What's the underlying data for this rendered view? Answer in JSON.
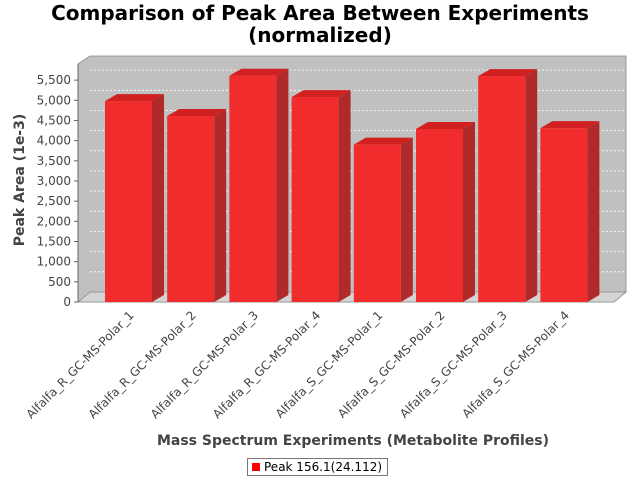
{
  "chart_data": {
    "type": "bar",
    "title": "Comparison of Peak Area Between Experiments (normalized)",
    "xlabel": "Mass Spectrum Experiments (Metabolite Profiles)",
    "ylabel": "Peak Area (1e-3)",
    "categories": [
      "Alfalfa_R_GC-MS-Polar_1",
      "Alfalfa_R_GC-MS-Polar_2",
      "Alfalfa_R_GC-MS-Polar_3",
      "Alfalfa_R_GC-MS-Polar_4",
      "Alfalfa_S_GC-MS-Polar_1",
      "Alfalfa_S_GC-MS-Polar_2",
      "Alfalfa_S_GC-MS-Polar_3",
      "Alfalfa_S_GC-MS-Polar_4"
    ],
    "series": [
      {
        "name": "Peak 156.1(24.112)",
        "values": [
          4980,
          4610,
          5610,
          5080,
          3900,
          4290,
          5600,
          4310
        ]
      }
    ],
    "yticks": [
      0,
      500,
      1000,
      1500,
      2000,
      2500,
      3000,
      3500,
      4000,
      4500,
      5000,
      5500
    ],
    "ytick_labels": [
      "0",
      "500",
      "1,000",
      "1,500",
      "2,000",
      "2,500",
      "3,000",
      "3,500",
      "4,000",
      "4,500",
      "5,000",
      "5,500"
    ],
    "ylim": [
      0,
      5900
    ],
    "grid": true,
    "legend": "bottom",
    "style": "3d",
    "colors": {
      "bar_front": "#f02c2c",
      "bar_top": "#d02020",
      "bar_side": "#b02a2a",
      "plot_back": "#c0c0c0",
      "plot_floor": "#d4d4d4",
      "legend_swatch": "#ff0000"
    }
  }
}
